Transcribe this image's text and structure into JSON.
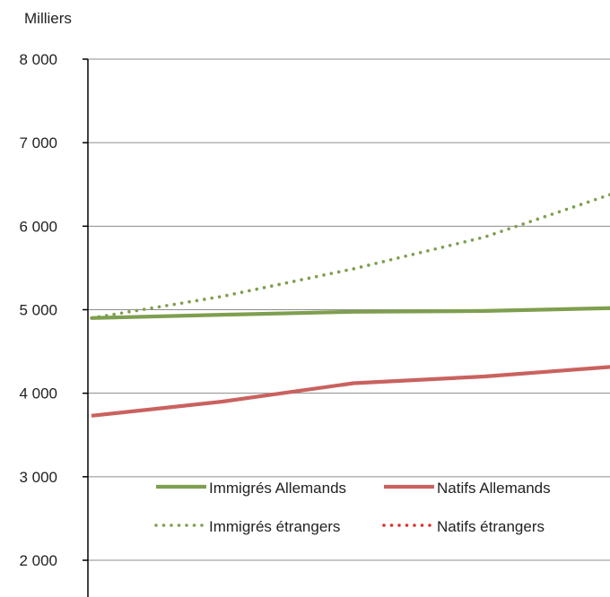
{
  "chart_data": {
    "type": "line",
    "unit_label": "Milliers",
    "ylim": [
      2000,
      8000
    ],
    "y_ticks": [
      {
        "value": 2000,
        "label": "2 000"
      },
      {
        "value": 3000,
        "label": "3 000"
      },
      {
        "value": 4000,
        "label": "4 000"
      },
      {
        "value": 5000,
        "label": "5 000"
      },
      {
        "value": 6000,
        "label": "6 000"
      },
      {
        "value": 7000,
        "label": "7 000"
      },
      {
        "value": 8000,
        "label": "8 000"
      }
    ],
    "grid": true,
    "legend_position": "bottom",
    "series": [
      {
        "name": "Immigrés Allemands",
        "style": "solid",
        "color": "#7e9f4f",
        "values": [
          4900,
          4940,
          4975,
          4985,
          5020
        ]
      },
      {
        "name": "Natifs Allemands",
        "style": "solid",
        "color": "#c9625f",
        "values": [
          3730,
          3900,
          4120,
          4200,
          4320
        ]
      },
      {
        "name": "Immigrés étrangers",
        "style": "dotted",
        "color": "#7e9f4f",
        "values": [
          4900,
          5160,
          5490,
          5870,
          6400
        ]
      },
      {
        "name": "Natifs étrangers",
        "style": "dotted",
        "color": "#e0302a",
        "values": []
      }
    ]
  }
}
